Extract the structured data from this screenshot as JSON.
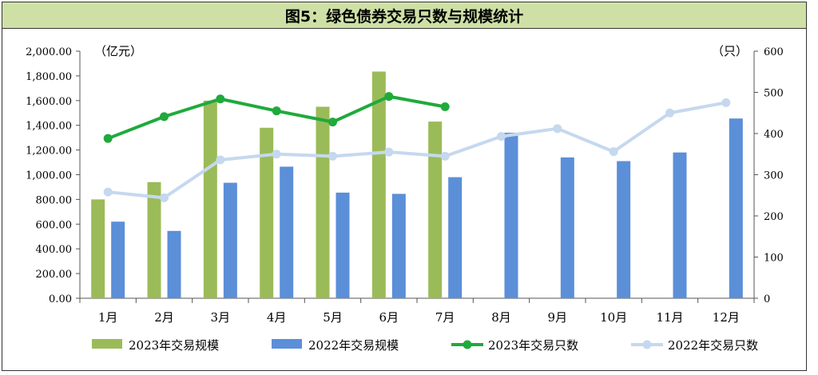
{
  "title": "图5：绿色债券交易只数与规模统计",
  "chart_data": {
    "type": "bar",
    "categories": [
      "1月",
      "2月",
      "3月",
      "4月",
      "5月",
      "6月",
      "7月",
      "8月",
      "9月",
      "10月",
      "11月",
      "12月"
    ],
    "y_left": {
      "unit_label": "（亿元）",
      "ticks": [
        "0.00",
        "200.00",
        "400.00",
        "600.00",
        "800.00",
        "1,000.00",
        "1,200.00",
        "1,400.00",
        "1,600.00",
        "1,800.00",
        "2,000.00"
      ],
      "range": [
        0,
        2000
      ]
    },
    "y_right": {
      "unit_label": "（只）",
      "ticks": [
        "0",
        "100",
        "200",
        "300",
        "400",
        "500",
        "600"
      ],
      "range": [
        0,
        600
      ]
    },
    "series": [
      {
        "name": "2023年交易规模",
        "kind": "bar",
        "axis": "left",
        "color": "#9bbb59",
        "values": [
          800,
          940,
          1600,
          1380,
          1550,
          1835,
          1430,
          null,
          null,
          null,
          null,
          null
        ]
      },
      {
        "name": "2022年交易规模",
        "kind": "bar",
        "axis": "left",
        "color": "#5b8fd8",
        "values": [
          620,
          545,
          935,
          1065,
          855,
          845,
          980,
          1340,
          1140,
          1110,
          1180,
          1455
        ]
      },
      {
        "name": "2023年交易只数",
        "kind": "line",
        "axis": "right",
        "color": "#1faa3c",
        "values": [
          388,
          441,
          484,
          455,
          428,
          490,
          465,
          null,
          null,
          null,
          null,
          null
        ]
      },
      {
        "name": "2022年交易只数",
        "kind": "line",
        "axis": "right",
        "color": "#c5d8ef",
        "values": [
          258,
          244,
          336,
          350,
          345,
          355,
          345,
          393,
          412,
          356,
          450,
          475
        ]
      }
    ],
    "legend_position": "bottom",
    "grid": false
  }
}
